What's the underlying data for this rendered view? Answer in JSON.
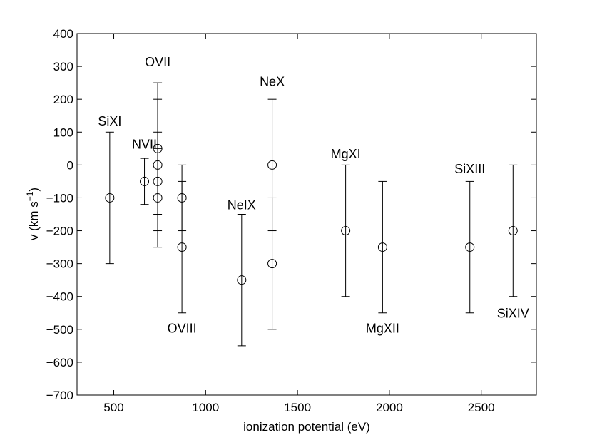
{
  "chart_data": {
    "type": "scatter",
    "title": "",
    "xlabel": "ionization potential (eV)",
    "ylabel": "v (km s",
    "ylabel_sup": "−1",
    "ylabel_close": ")",
    "xlim": [
      300,
      2800
    ],
    "ylim": [
      -700,
      400
    ],
    "xticks": [
      500,
      1000,
      1500,
      2000,
      2500
    ],
    "xtick_labels": [
      "500",
      "1000",
      "1500",
      "2000",
      "2500"
    ],
    "yticks": [
      400,
      300,
      200,
      100,
      0,
      -100,
      -200,
      -300,
      -400,
      -500,
      -600,
      -700
    ],
    "ytick_labels": [
      "400",
      "300",
      "200",
      "100",
      "0",
      "−100",
      "−200",
      "−300",
      "−400",
      "−500",
      "−600",
      "−700"
    ],
    "grid": false,
    "marker": "open-circle",
    "points": [
      {
        "x": 478,
        "y": -100,
        "low": -300,
        "high": 100
      },
      {
        "x": 667,
        "y": -50,
        "low": -120,
        "high": 20
      },
      {
        "x": 739,
        "y": 50,
        "low": -150,
        "high": 200
      },
      {
        "x": 739,
        "y": 0,
        "low": -250,
        "high": 250
      },
      {
        "x": 739,
        "y": -50,
        "low": -200,
        "high": 100
      },
      {
        "x": 739,
        "y": -100,
        "low": -250,
        "high": 50
      },
      {
        "x": 871,
        "y": -100,
        "low": -200,
        "high": 0
      },
      {
        "x": 871,
        "y": -250,
        "low": -450,
        "high": -50
      },
      {
        "x": 1196,
        "y": -350,
        "low": -550,
        "high": -150
      },
      {
        "x": 1362,
        "y": 0,
        "low": -200,
        "high": 200
      },
      {
        "x": 1362,
        "y": -300,
        "low": -500,
        "high": -100
      },
      {
        "x": 1762,
        "y": -200,
        "low": -400,
        "high": 0
      },
      {
        "x": 1963,
        "y": -250,
        "low": -450,
        "high": -50
      },
      {
        "x": 2438,
        "y": -250,
        "low": -450,
        "high": -50
      },
      {
        "x": 2673,
        "y": -200,
        "low": -400,
        "high": 0
      }
    ],
    "annotations": [
      {
        "text": "SiXI",
        "x": 478,
        "y": 120
      },
      {
        "text": "NVII",
        "x": 667,
        "y": 50
      },
      {
        "text": "OVII",
        "x": 739,
        "y": 300
      },
      {
        "text": "OVIII",
        "x": 871,
        "y": -510
      },
      {
        "text": "NeIX",
        "x": 1196,
        "y": -135
      },
      {
        "text": "NeX",
        "x": 1362,
        "y": 240
      },
      {
        "text": "MgXI",
        "x": 1762,
        "y": 20
      },
      {
        "text": "MgXII",
        "x": 1963,
        "y": -510
      },
      {
        "text": "SiXIII",
        "x": 2438,
        "y": -25
      },
      {
        "text": "SiXIV",
        "x": 2673,
        "y": -465
      }
    ]
  }
}
